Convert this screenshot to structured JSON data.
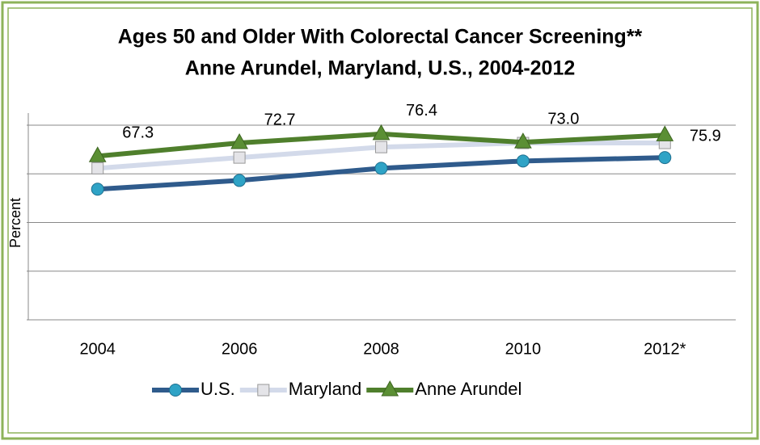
{
  "chart_data": {
    "type": "line",
    "title": "Ages 50 and Older With Colorectal Cancer Screening**",
    "subtitle": "Anne Arundel, Maryland, U.S., 2004-2012",
    "y_label": "Percent",
    "categories": [
      "2004",
      "2006",
      "2008",
      "2010",
      "2012*"
    ],
    "series": [
      {
        "name": "U.S.",
        "color": "#2f5b8c",
        "marker": "circle",
        "values": [
          53.7,
          57.3,
          62.3,
          65.3,
          66.7
        ]
      },
      {
        "name": "Maryland",
        "color": "#d3daea",
        "marker": "square",
        "values": [
          62.3,
          66.7,
          71.0,
          72.7,
          72.7
        ]
      },
      {
        "name": "Anne Arundel",
        "color": "#4f7f2c",
        "marker": "triangle",
        "values": [
          67.3,
          72.7,
          76.4,
          73.0,
          75.9
        ],
        "value_labels": [
          "67.3",
          "72.7",
          "76.4",
          "73.0",
          "75.9"
        ]
      }
    ],
    "ylim": [
      0,
      85
    ],
    "yticks": [
      0,
      20,
      40,
      60,
      80
    ],
    "grid": true
  }
}
